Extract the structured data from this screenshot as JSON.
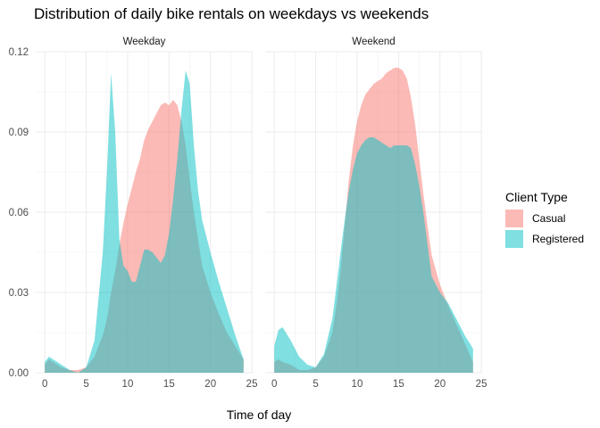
{
  "chart_data": {
    "type": "area",
    "title": "Distribution of daily bike rentals on weekdays vs weekends",
    "xlabel": "Time of day",
    "ylabel": "",
    "xlim": [
      0,
      24
    ],
    "ylim": [
      0,
      0.12
    ],
    "x_ticks": [
      0,
      5,
      10,
      15,
      20,
      25
    ],
    "y_ticks": [
      "0.00",
      "0.03",
      "0.06",
      "0.09",
      "0.12"
    ],
    "grid": true,
    "legend": {
      "title": "Client Type",
      "position": "right",
      "entries": [
        "Casual",
        "Registered"
      ]
    },
    "colors": {
      "Casual": "#F8766D",
      "Registered": "#00BFC4"
    },
    "x": [
      0,
      0.5,
      1,
      2,
      3,
      4,
      5,
      6,
      7,
      7.5,
      8,
      8.5,
      9,
      9.5,
      10,
      10.5,
      11,
      11.5,
      12,
      12.5,
      13,
      13.5,
      14,
      14.5,
      15,
      15.5,
      16,
      16.5,
      17,
      17.5,
      18,
      18.5,
      19,
      20,
      21,
      22,
      23,
      24
    ],
    "facets": [
      {
        "label": "Weekday",
        "series": [
          {
            "name": "Casual",
            "values": [
              0.003,
              0.005,
              0.004,
              0.002,
              0.001,
              0.001,
              0.002,
              0.006,
              0.014,
              0.02,
              0.03,
              0.038,
              0.048,
              0.056,
              0.063,
              0.069,
              0.075,
              0.08,
              0.087,
              0.091,
              0.094,
              0.097,
              0.1,
              0.101,
              0.1,
              0.102,
              0.1,
              0.094,
              0.085,
              0.072,
              0.06,
              0.05,
              0.04,
              0.03,
              0.022,
              0.015,
              0.01,
              0.005
            ]
          },
          {
            "name": "Registered",
            "values": [
              0.004,
              0.006,
              0.005,
              0.003,
              0.001,
              0.0,
              0.002,
              0.012,
              0.045,
              0.075,
              0.112,
              0.09,
              0.05,
              0.04,
              0.038,
              0.034,
              0.034,
              0.04,
              0.046,
              0.046,
              0.045,
              0.043,
              0.041,
              0.044,
              0.052,
              0.065,
              0.08,
              0.098,
              0.113,
              0.108,
              0.085,
              0.068,
              0.057,
              0.045,
              0.034,
              0.024,
              0.014,
              0.005
            ]
          }
        ]
      },
      {
        "label": "Weekend",
        "series": [
          {
            "name": "Casual",
            "values": [
              0.004,
              0.005,
              0.004,
              0.003,
              0.001,
              0.001,
              0.002,
              0.006,
              0.015,
              0.025,
              0.038,
              0.055,
              0.072,
              0.085,
              0.094,
              0.1,
              0.104,
              0.106,
              0.108,
              0.109,
              0.11,
              0.112,
              0.113,
              0.114,
              0.114,
              0.113,
              0.11,
              0.103,
              0.093,
              0.08,
              0.067,
              0.055,
              0.044,
              0.033,
              0.025,
              0.018,
              0.011,
              0.004
            ]
          },
          {
            "name": "Registered",
            "values": [
              0.01,
              0.016,
              0.017,
              0.012,
              0.006,
              0.003,
              0.002,
              0.007,
              0.02,
              0.032,
              0.045,
              0.057,
              0.068,
              0.076,
              0.082,
              0.085,
              0.087,
              0.088,
              0.088,
              0.087,
              0.086,
              0.085,
              0.084,
              0.085,
              0.085,
              0.085,
              0.085,
              0.084,
              0.078,
              0.07,
              0.06,
              0.048,
              0.036,
              0.03,
              0.026,
              0.02,
              0.014,
              0.009
            ]
          }
        ]
      }
    ]
  }
}
